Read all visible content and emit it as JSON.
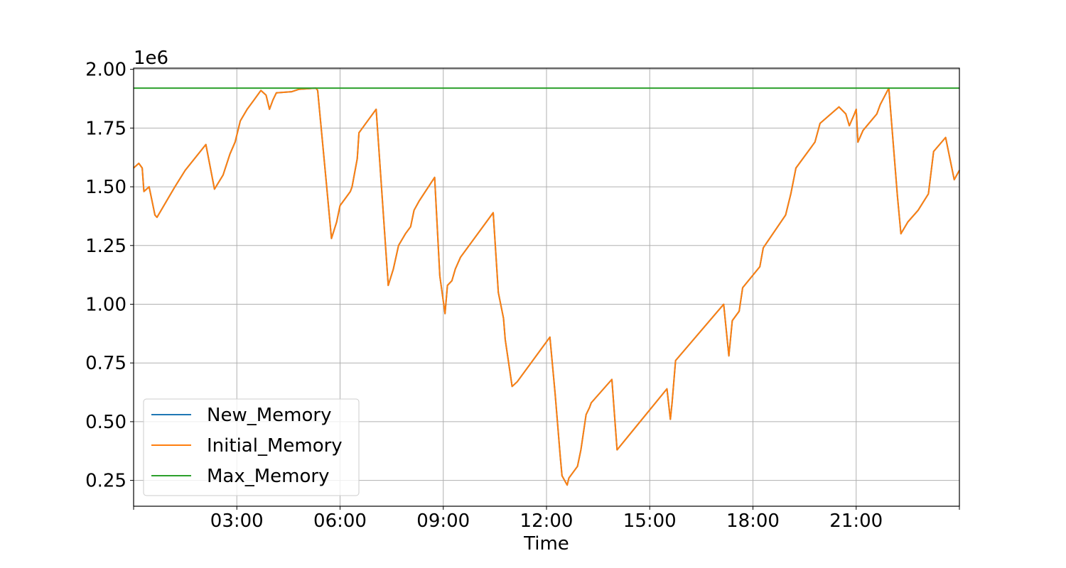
{
  "chart_data": {
    "type": "line",
    "xlabel": "Time",
    "ylabel": "",
    "y_offset_text": "1e6",
    "xlim": [
      0,
      24
    ],
    "ylim": [
      0.14,
      2.005
    ],
    "x_ticks": [
      {
        "value": 0,
        "label": ""
      },
      {
        "value": 3,
        "label": "03:00"
      },
      {
        "value": 6,
        "label": "06:00"
      },
      {
        "value": 9,
        "label": "09:00"
      },
      {
        "value": 12,
        "label": "12:00"
      },
      {
        "value": 15,
        "label": "15:00"
      },
      {
        "value": 18,
        "label": "18:00"
      },
      {
        "value": 21,
        "label": "21:00"
      },
      {
        "value": 24,
        "label": ""
      }
    ],
    "y_ticks": [
      {
        "value": 0.25,
        "label": "0.25"
      },
      {
        "value": 0.5,
        "label": "0.50"
      },
      {
        "value": 0.75,
        "label": "0.75"
      },
      {
        "value": 1.0,
        "label": "1.00"
      },
      {
        "value": 1.25,
        "label": "1.25"
      },
      {
        "value": 1.5,
        "label": "1.50"
      },
      {
        "value": 1.75,
        "label": "1.75"
      },
      {
        "value": 2.0,
        "label": "2.00"
      }
    ],
    "grid": true,
    "legend_position": "bottom-left",
    "colors": {
      "New_Memory": "#1f77b4",
      "Initial_Memory": "#ff7f0e",
      "Max_Memory": "#2ca02c",
      "grid": "#b0b0b0",
      "axes": "#000000"
    },
    "series": [
      {
        "name": "New_Memory",
        "points": [
          [
            0.0,
            1.58
          ],
          [
            0.15,
            1.6
          ],
          [
            0.25,
            1.58
          ],
          [
            0.3,
            1.48
          ],
          [
            0.45,
            1.5
          ],
          [
            0.55,
            1.43
          ],
          [
            0.62,
            1.38
          ],
          [
            0.68,
            1.37
          ],
          [
            0.8,
            1.4
          ],
          [
            1.0,
            1.45
          ],
          [
            1.2,
            1.5
          ],
          [
            1.5,
            1.57
          ],
          [
            2.1,
            1.68
          ],
          [
            2.35,
            1.49
          ],
          [
            2.6,
            1.55
          ],
          [
            2.8,
            1.64
          ],
          [
            2.95,
            1.69
          ],
          [
            3.1,
            1.78
          ],
          [
            3.3,
            1.83
          ],
          [
            3.5,
            1.87
          ],
          [
            3.7,
            1.91
          ],
          [
            3.85,
            1.89
          ],
          [
            3.95,
            1.83
          ],
          [
            4.05,
            1.87
          ],
          [
            4.15,
            1.9
          ],
          [
            4.6,
            1.905
          ],
          [
            4.8,
            1.915
          ],
          [
            5.3,
            1.92
          ],
          [
            5.35,
            1.91
          ],
          [
            5.6,
            1.52
          ],
          [
            5.75,
            1.28
          ],
          [
            5.9,
            1.35
          ],
          [
            6.0,
            1.42
          ],
          [
            6.15,
            1.45
          ],
          [
            6.3,
            1.48
          ],
          [
            6.35,
            1.5
          ],
          [
            6.5,
            1.62
          ],
          [
            6.55,
            1.73
          ],
          [
            6.75,
            1.77
          ],
          [
            7.05,
            1.83
          ],
          [
            7.4,
            1.08
          ],
          [
            7.55,
            1.15
          ],
          [
            7.7,
            1.25
          ],
          [
            7.9,
            1.3
          ],
          [
            8.05,
            1.33
          ],
          [
            8.15,
            1.4
          ],
          [
            8.3,
            1.44
          ],
          [
            8.75,
            1.54
          ],
          [
            8.9,
            1.12
          ],
          [
            9.05,
            0.96
          ],
          [
            9.12,
            1.08
          ],
          [
            9.25,
            1.1
          ],
          [
            9.35,
            1.15
          ],
          [
            9.5,
            1.2
          ],
          [
            10.45,
            1.39
          ],
          [
            10.6,
            1.05
          ],
          [
            10.75,
            0.94
          ],
          [
            10.8,
            0.85
          ],
          [
            11.0,
            0.65
          ],
          [
            11.15,
            0.67
          ],
          [
            12.1,
            0.86
          ],
          [
            12.25,
            0.62
          ],
          [
            12.4,
            0.35
          ],
          [
            12.45,
            0.27
          ],
          [
            12.6,
            0.23
          ],
          [
            12.65,
            0.26
          ],
          [
            12.9,
            0.31
          ],
          [
            13.0,
            0.38
          ],
          [
            13.15,
            0.53
          ],
          [
            13.25,
            0.56
          ],
          [
            13.3,
            0.58
          ],
          [
            13.9,
            0.68
          ],
          [
            14.05,
            0.38
          ],
          [
            15.5,
            0.64
          ],
          [
            15.6,
            0.51
          ],
          [
            15.65,
            0.58
          ],
          [
            15.75,
            0.76
          ],
          [
            17.15,
            1.0
          ],
          [
            17.3,
            0.78
          ],
          [
            17.4,
            0.93
          ],
          [
            17.6,
            0.97
          ],
          [
            17.7,
            1.07
          ],
          [
            18.2,
            1.16
          ],
          [
            18.3,
            1.24
          ],
          [
            18.95,
            1.38
          ],
          [
            19.1,
            1.47
          ],
          [
            19.25,
            1.58
          ],
          [
            19.8,
            1.69
          ],
          [
            19.95,
            1.77
          ],
          [
            20.5,
            1.84
          ],
          [
            20.7,
            1.81
          ],
          [
            20.8,
            1.76
          ],
          [
            20.95,
            1.81
          ],
          [
            21.0,
            1.83
          ],
          [
            21.05,
            1.69
          ],
          [
            21.2,
            1.74
          ],
          [
            21.6,
            1.81
          ],
          [
            21.7,
            1.85
          ],
          [
            21.95,
            1.92
          ],
          [
            22.2,
            1.46
          ],
          [
            22.3,
            1.3
          ],
          [
            22.5,
            1.35
          ],
          [
            22.8,
            1.4
          ],
          [
            23.1,
            1.47
          ],
          [
            23.25,
            1.65
          ],
          [
            23.6,
            1.71
          ],
          [
            23.85,
            1.53
          ],
          [
            24.0,
            1.57
          ]
        ]
      },
      {
        "name": "Initial_Memory",
        "points": [
          [
            0.0,
            1.58
          ],
          [
            0.15,
            1.6
          ],
          [
            0.25,
            1.58
          ],
          [
            0.3,
            1.48
          ],
          [
            0.45,
            1.5
          ],
          [
            0.55,
            1.43
          ],
          [
            0.62,
            1.38
          ],
          [
            0.68,
            1.37
          ],
          [
            0.8,
            1.4
          ],
          [
            1.0,
            1.45
          ],
          [
            1.2,
            1.5
          ],
          [
            1.5,
            1.57
          ],
          [
            2.1,
            1.68
          ],
          [
            2.35,
            1.49
          ],
          [
            2.6,
            1.55
          ],
          [
            2.8,
            1.64
          ],
          [
            2.95,
            1.69
          ],
          [
            3.1,
            1.78
          ],
          [
            3.3,
            1.83
          ],
          [
            3.5,
            1.87
          ],
          [
            3.7,
            1.91
          ],
          [
            3.85,
            1.89
          ],
          [
            3.95,
            1.83
          ],
          [
            4.05,
            1.87
          ],
          [
            4.15,
            1.9
          ],
          [
            4.6,
            1.905
          ],
          [
            4.8,
            1.915
          ],
          [
            5.3,
            1.92
          ],
          [
            5.35,
            1.91
          ],
          [
            5.6,
            1.52
          ],
          [
            5.75,
            1.28
          ],
          [
            5.9,
            1.35
          ],
          [
            6.0,
            1.42
          ],
          [
            6.15,
            1.45
          ],
          [
            6.3,
            1.48
          ],
          [
            6.35,
            1.5
          ],
          [
            6.5,
            1.62
          ],
          [
            6.55,
            1.73
          ],
          [
            6.75,
            1.77
          ],
          [
            7.05,
            1.83
          ],
          [
            7.4,
            1.08
          ],
          [
            7.55,
            1.15
          ],
          [
            7.7,
            1.25
          ],
          [
            7.9,
            1.3
          ],
          [
            8.05,
            1.33
          ],
          [
            8.15,
            1.4
          ],
          [
            8.3,
            1.44
          ],
          [
            8.75,
            1.54
          ],
          [
            8.9,
            1.12
          ],
          [
            9.05,
            0.96
          ],
          [
            9.12,
            1.08
          ],
          [
            9.25,
            1.1
          ],
          [
            9.35,
            1.15
          ],
          [
            9.5,
            1.2
          ],
          [
            10.45,
            1.39
          ],
          [
            10.6,
            1.05
          ],
          [
            10.75,
            0.94
          ],
          [
            10.8,
            0.85
          ],
          [
            11.0,
            0.65
          ],
          [
            11.15,
            0.67
          ],
          [
            12.1,
            0.86
          ],
          [
            12.25,
            0.62
          ],
          [
            12.4,
            0.35
          ],
          [
            12.45,
            0.27
          ],
          [
            12.6,
            0.23
          ],
          [
            12.65,
            0.26
          ],
          [
            12.9,
            0.31
          ],
          [
            13.0,
            0.38
          ],
          [
            13.15,
            0.53
          ],
          [
            13.25,
            0.56
          ],
          [
            13.3,
            0.58
          ],
          [
            13.9,
            0.68
          ],
          [
            14.05,
            0.38
          ],
          [
            15.5,
            0.64
          ],
          [
            15.6,
            0.51
          ],
          [
            15.65,
            0.58
          ],
          [
            15.75,
            0.76
          ],
          [
            17.15,
            1.0
          ],
          [
            17.3,
            0.78
          ],
          [
            17.4,
            0.93
          ],
          [
            17.6,
            0.97
          ],
          [
            17.7,
            1.07
          ],
          [
            18.2,
            1.16
          ],
          [
            18.3,
            1.24
          ],
          [
            18.95,
            1.38
          ],
          [
            19.1,
            1.47
          ],
          [
            19.25,
            1.58
          ],
          [
            19.8,
            1.69
          ],
          [
            19.95,
            1.77
          ],
          [
            20.5,
            1.84
          ],
          [
            20.7,
            1.81
          ],
          [
            20.8,
            1.76
          ],
          [
            20.95,
            1.81
          ],
          [
            21.0,
            1.83
          ],
          [
            21.05,
            1.69
          ],
          [
            21.2,
            1.74
          ],
          [
            21.6,
            1.81
          ],
          [
            21.7,
            1.85
          ],
          [
            21.95,
            1.92
          ],
          [
            22.2,
            1.46
          ],
          [
            22.3,
            1.3
          ],
          [
            22.5,
            1.35
          ],
          [
            22.8,
            1.4
          ],
          [
            23.1,
            1.47
          ],
          [
            23.25,
            1.65
          ],
          [
            23.6,
            1.71
          ],
          [
            23.85,
            1.53
          ],
          [
            24.0,
            1.57
          ]
        ]
      },
      {
        "name": "Max_Memory",
        "points": [
          [
            0.0,
            1.92
          ],
          [
            24.0,
            1.92
          ]
        ]
      }
    ]
  }
}
